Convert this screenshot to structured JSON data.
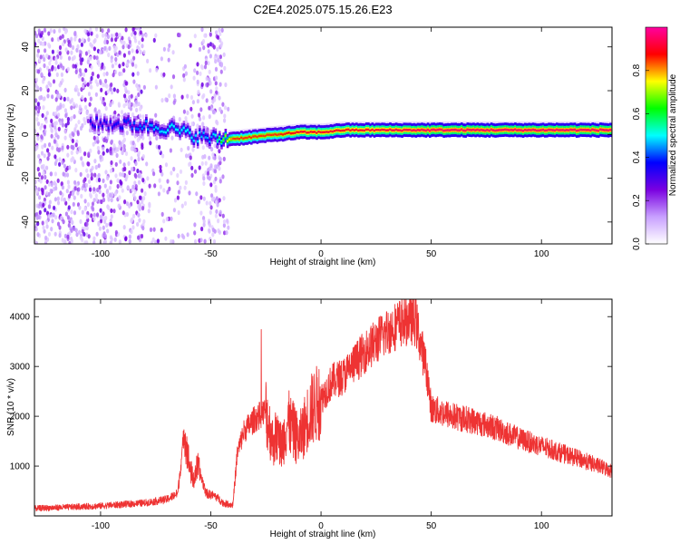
{
  "figure": {
    "title": "C2E4.2025.075.15.26.E23"
  },
  "chart_data": [
    {
      "type": "heatmap",
      "xlabel": "Height of straight line (km)",
      "ylabel": "Frequency (Hz)",
      "xlim": [
        -130,
        132
      ],
      "ylim": [
        -50,
        49
      ],
      "xticks": [
        -100,
        -50,
        0,
        50,
        100
      ],
      "yticks": [
        -40,
        -20,
        0,
        20,
        40
      ],
      "colorbar": {
        "label": "Normalized spectral amplitude",
        "range": [
          0,
          1
        ],
        "ticks": [
          "0.0",
          "0.2",
          "0.4",
          "0.6",
          "0.8"
        ],
        "colormap": [
          "#ffffff",
          "#c8a0ff",
          "#7a00e0",
          "#0000ff",
          "#00ffff",
          "#00ff00",
          "#ffff00",
          "#ff0000",
          "#ff00a0"
        ]
      },
      "ridge": [
        {
          "x": -95,
          "freq": 5,
          "amp": 0.35
        },
        {
          "x": -80,
          "freq": 4,
          "amp": 0.45
        },
        {
          "x": -70,
          "freq": 3,
          "amp": 0.5
        },
        {
          "x": -60,
          "freq": 0,
          "amp": 0.5
        },
        {
          "x": -50,
          "freq": -2,
          "amp": 0.45
        },
        {
          "x": -40,
          "freq": -2,
          "amp": 0.85
        },
        {
          "x": -30,
          "freq": -1,
          "amp": 0.85
        },
        {
          "x": -20,
          "freq": 0,
          "amp": 0.85
        },
        {
          "x": -10,
          "freq": 1,
          "amp": 0.9
        },
        {
          "x": 0,
          "freq": 1,
          "amp": 0.9
        },
        {
          "x": 10,
          "freq": 2,
          "amp": 0.9
        },
        {
          "x": 50,
          "freq": 2,
          "amp": 0.95
        },
        {
          "x": 100,
          "freq": 2,
          "amp": 0.95
        },
        {
          "x": 132,
          "freq": 2,
          "amp": 0.95
        }
      ]
    },
    {
      "type": "line",
      "xlabel": "Height of straight line (km)",
      "ylabel": "SNR (10 * v/v)",
      "xlim": [
        -130,
        132
      ],
      "ylim": [
        0,
        4350
      ],
      "xticks": [
        -100,
        -50,
        0,
        50,
        100
      ],
      "yticks": [
        1000,
        2000,
        3000,
        4000
      ],
      "color": "#ee3333",
      "series": [
        {
          "x": [
            -130,
            -100,
            -80,
            -70,
            -65,
            -62,
            -60,
            -58,
            -56,
            -52,
            -48,
            -44,
            -40,
            -38,
            -35,
            -30,
            -25,
            -22,
            -20,
            -18,
            -15,
            -10,
            -5,
            0,
            5,
            10,
            15,
            20,
            25,
            30,
            35,
            40,
            43,
            45,
            48,
            50,
            60,
            70,
            80,
            90,
            100,
            110,
            120,
            132
          ],
          "y": [
            150,
            200,
            260,
            330,
            450,
            1700,
            1100,
            700,
            1000,
            450,
            400,
            250,
            220,
            1250,
            1700,
            1950,
            2100,
            1500,
            1600,
            1400,
            1900,
            1500,
            2100,
            2350,
            2700,
            2800,
            3050,
            3300,
            3500,
            3700,
            3850,
            3950,
            3900,
            3500,
            2900,
            2150,
            2000,
            1900,
            1750,
            1550,
            1400,
            1250,
            1100,
            900
          ]
        }
      ]
    }
  ]
}
